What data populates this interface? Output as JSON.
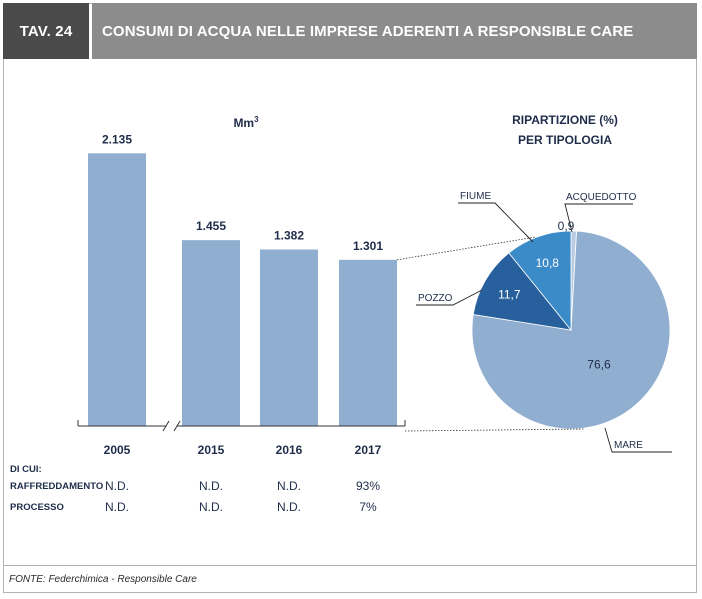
{
  "header": {
    "tag": "TAV. 24",
    "title": "CONSUMI DI ACQUA NELLE IMPRESE ADERENTI A RESPONSIBLE CARE"
  },
  "source": "FONTE: Federchimica - Responsible Care",
  "colors": {
    "bar": "#90aed0",
    "mare": "#90aed0",
    "pozzo": "#28609e",
    "fiume": "#3b8bc9",
    "acquedotto": "#b9cbe0",
    "text": "#1f2d4a"
  },
  "chart_data": [
    {
      "type": "bar",
      "unit_label": "Mm",
      "unit_superscript": "3",
      "categories": [
        "2005",
        "2015",
        "2016",
        "2017"
      ],
      "values": [
        2135,
        1455,
        1382,
        1301
      ],
      "value_labels": [
        "2.135",
        "1.455",
        "1.382",
        "1.301"
      ],
      "axis_break_between": [
        "2005",
        "2015"
      ],
      "ylim": [
        0,
        2200
      ],
      "table": {
        "header": "DI CUI:",
        "rows": [
          {
            "label": "RAFFREDDAMENTO",
            "values": [
              "N.D.",
              "N.D.",
              "N.D.",
              "93%"
            ]
          },
          {
            "label": "PROCESSO",
            "values": [
              "N.D.",
              "N.D.",
              "N.D.",
              "7%"
            ]
          }
        ]
      }
    },
    {
      "type": "pie",
      "title_lines": [
        "RIPARTIZIONE (%)",
        "PER TIPOLOGIA"
      ],
      "linked_to": "2017",
      "slices": [
        {
          "label": "MARE",
          "value": 76.6,
          "value_label": "76,6",
          "color": "#90aed0"
        },
        {
          "label": "POZZO",
          "value": 11.7,
          "value_label": "11,7",
          "color": "#28609e"
        },
        {
          "label": "FIUME",
          "value": 10.8,
          "value_label": "10,8",
          "color": "#3b8bc9"
        },
        {
          "label": "ACQUEDOTTO",
          "value": 0.9,
          "value_label": "0,9",
          "color": "#b9cbe0"
        }
      ]
    }
  ]
}
